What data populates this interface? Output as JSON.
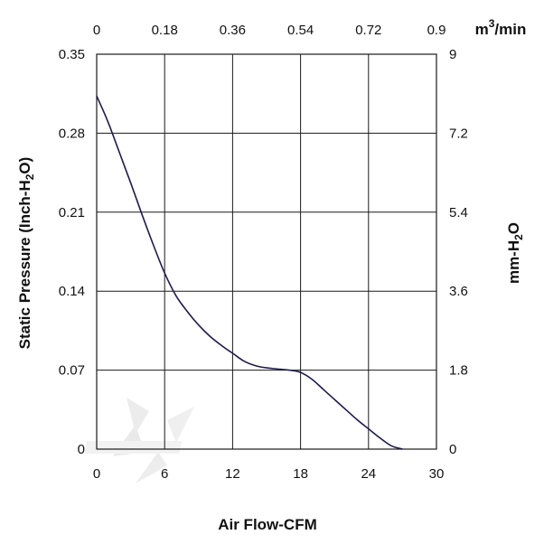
{
  "chart_data": {
    "type": "line",
    "xlabel": "Air Flow-CFM",
    "ylabel_left": {
      "prefix": "Static Pressure (Inch-H",
      "sub": "2",
      "suffix": "O)"
    },
    "ylabel_right": {
      "prefix": "mm-H",
      "sub": "2",
      "suffix": "O"
    },
    "x2label": {
      "prefix": "m",
      "sup": "3",
      "suffix": "/min"
    },
    "xlim": [
      0,
      30
    ],
    "ylim": [
      0,
      0.35
    ],
    "x_ticks": [
      "0",
      "6",
      "12",
      "18",
      "24",
      "30"
    ],
    "y_ticks": [
      "0",
      "0.07",
      "0.14",
      "0.21",
      "0.28",
      "0.35"
    ],
    "x2_ticks": [
      "0",
      "0.18",
      "0.36",
      "0.54",
      "0.72",
      "0.9"
    ],
    "y2_ticks": [
      "0",
      "1.8",
      "3.6",
      "5.4",
      "7.2",
      "9"
    ],
    "grid": true,
    "series": [
      {
        "x": [
          0,
          1,
          2,
          3,
          4,
          5,
          6,
          7,
          8,
          9,
          10,
          11,
          12,
          13,
          14,
          15,
          16,
          17,
          18,
          19,
          20,
          21,
          22,
          23,
          24,
          25,
          26,
          27
        ],
        "y": [
          0.313,
          0.29,
          0.263,
          0.236,
          0.208,
          0.181,
          0.156,
          0.136,
          0.122,
          0.11,
          0.1,
          0.092,
          0.085,
          0.078,
          0.074,
          0.072,
          0.071,
          0.07,
          0.068,
          0.062,
          0.053,
          0.044,
          0.035,
          0.026,
          0.018,
          0.01,
          0.003,
          0
        ]
      }
    ],
    "colors": {
      "curve": "#1e1c4a",
      "grid": "#1a1a1a"
    }
  }
}
